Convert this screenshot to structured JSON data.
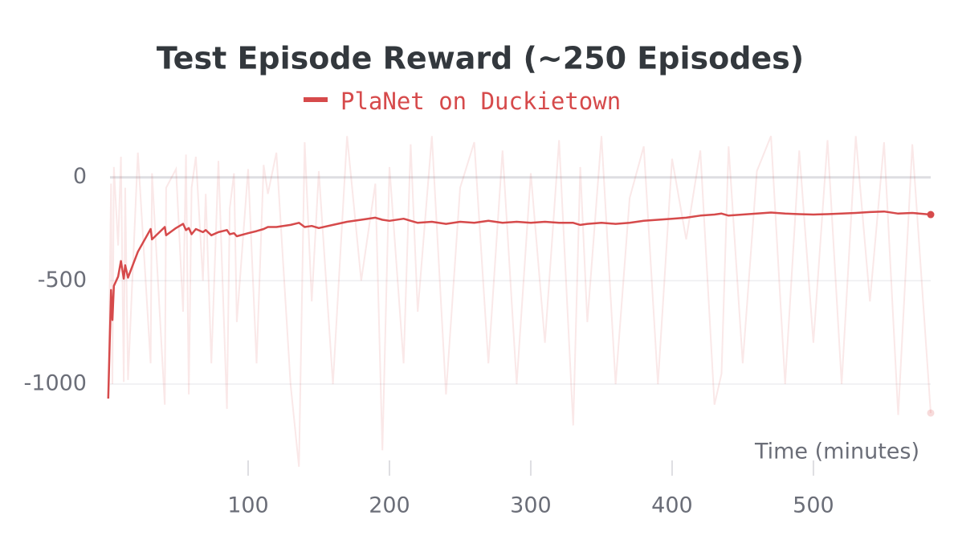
{
  "chart_data": {
    "type": "line",
    "title": "Test Episode Reward (~250 Episodes)",
    "xlabel": "Time (minutes)",
    "x": [
      1,
      3,
      4,
      5,
      8,
      10,
      12,
      13,
      15,
      22,
      31,
      32,
      41,
      42,
      49,
      54,
      56,
      58,
      60,
      63,
      68,
      70,
      74,
      79,
      85,
      87,
      90,
      92,
      100,
      106,
      111,
      114,
      120,
      130,
      136,
      140,
      145,
      150,
      160,
      170,
      180,
      190,
      195,
      200,
      210,
      215,
      220,
      230,
      240,
      250,
      260,
      270,
      280,
      290,
      300,
      310,
      320,
      330,
      335,
      340,
      350,
      360,
      370,
      380,
      390,
      400,
      410,
      420,
      430,
      435,
      440,
      450,
      460,
      470,
      480,
      490,
      500,
      510,
      520,
      530,
      540,
      550,
      560,
      570,
      583
    ],
    "series": [
      {
        "name": "PlaNet on Duckietown",
        "color": "#d64a4b",
        "values": [
          -1070,
          -545,
          -690,
          -525,
          -480,
          -405,
          -490,
          -425,
          -485,
          -360,
          -250,
          -300,
          -240,
          -280,
          -245,
          -225,
          -255,
          -245,
          -275,
          -250,
          -265,
          -255,
          -280,
          -265,
          -255,
          -275,
          -270,
          -285,
          -270,
          -260,
          -250,
          -240,
          -240,
          -230,
          -220,
          -240,
          -235,
          -245,
          -230,
          -215,
          -205,
          -195,
          -205,
          -210,
          -200,
          -210,
          -220,
          -215,
          -225,
          -215,
          -220,
          -210,
          -220,
          -215,
          -220,
          -215,
          -220,
          -220,
          -230,
          -225,
          -220,
          -225,
          -220,
          -210,
          -205,
          -200,
          -195,
          -185,
          -180,
          -175,
          -185,
          -180,
          -175,
          -170,
          -175,
          -178,
          -180,
          -178,
          -175,
          -172,
          -168,
          -165,
          -175,
          -172,
          -180
        ],
        "raw_values": [
          -1070,
          -30,
          -1000,
          50,
          -330,
          100,
          -990,
          -50,
          -980,
          120,
          -900,
          20,
          -1100,
          -50,
          40,
          -650,
          110,
          -1050,
          -50,
          100,
          -500,
          -80,
          -900,
          80,
          -1120,
          -150,
          20,
          -700,
          40,
          -900,
          60,
          -80,
          120,
          -1000,
          -1400,
          170,
          -600,
          30,
          -1000,
          200,
          -500,
          -30,
          -1320,
          50,
          -900,
          160,
          -650,
          200,
          -1050,
          -50,
          170,
          -900,
          130,
          -1000,
          20,
          -800,
          180,
          -1200,
          50,
          -700,
          200,
          -1000,
          -100,
          150,
          -1000,
          90,
          -300,
          130,
          -1100,
          -950,
          150,
          -900,
          30,
          200,
          -1000,
          130,
          -800,
          180,
          -1000,
          200,
          -600,
          170,
          -1150,
          160,
          -1140
        ]
      }
    ],
    "xlim": [
      0,
      583
    ],
    "ylim": [
      -1420,
      240
    ],
    "xticks": [
      100,
      200,
      300,
      400,
      500
    ],
    "yticks": [
      0,
      -500,
      -1000
    ],
    "grid": true
  }
}
